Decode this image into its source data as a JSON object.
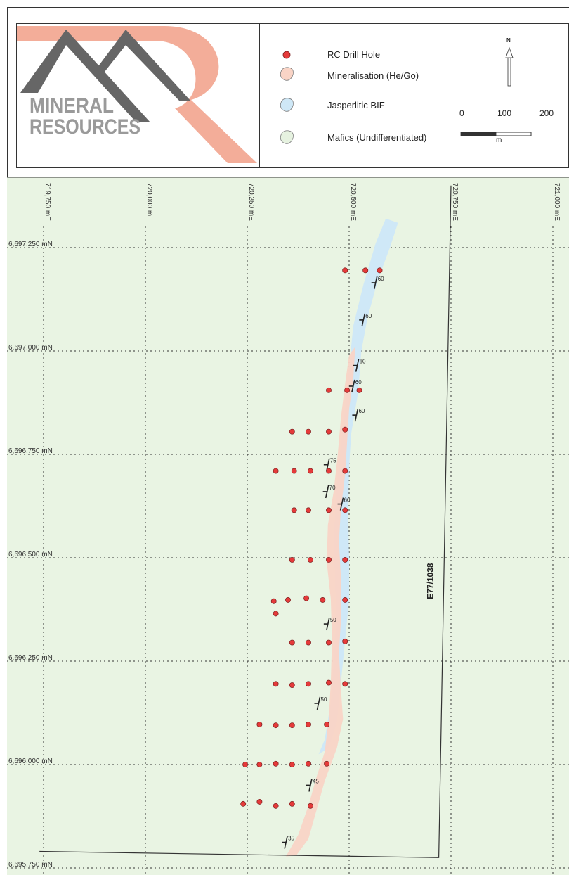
{
  "logo": {
    "line1": "MINERAL",
    "line2": "RESOURCES",
    "text_color": "#9a9a9a",
    "mountain_color": "#666666",
    "accent_color": "#f2a48e"
  },
  "legend": {
    "items": [
      {
        "label": "RC Drill Hole",
        "symbol": "drill-hole",
        "color": "#e53a3a"
      },
      {
        "label": "Mineralisation (He/Go)",
        "symbol": "polygon",
        "color": "#f9d4c6"
      },
      {
        "label": "Jasperlitic BIF",
        "symbol": "polygon",
        "color": "#cfe8f7"
      },
      {
        "label": "Mafics (Undifferentiated)",
        "symbol": "polygon",
        "color": "#e6f2e0"
      }
    ],
    "north_label": "N",
    "scale": {
      "ticks": [
        "0",
        "100",
        "200"
      ],
      "unit": "m"
    }
  },
  "map": {
    "background_color": "#e9f4e3",
    "eastings": [
      {
        "label": "719,750 mE",
        "value": 719750
      },
      {
        "label": "720,000 mE",
        "value": 720000
      },
      {
        "label": "720,250 mE",
        "value": 720250
      },
      {
        "label": "720,500 mE",
        "value": 720500
      },
      {
        "label": "720,750 mE",
        "value": 720750
      },
      {
        "label": "721,000 mE",
        "value": 721000
      }
    ],
    "northings": [
      {
        "label": "6,697,250 mN",
        "value": 6697250
      },
      {
        "label": "6,697,000 mN",
        "value": 6697000
      },
      {
        "label": "6,696,750 mN",
        "value": 6696750
      },
      {
        "label": "6,696,500 mN",
        "value": 6696500
      },
      {
        "label": "6,696,250 mN",
        "value": 6696250
      },
      {
        "label": "6,696,000 mN",
        "value": 6696000
      },
      {
        "label": "6,695,750 mN",
        "value": 6695750
      }
    ],
    "tenement_label": "E77/1038",
    "tenement_boundary": [
      [
        720750,
        6697400
      ],
      [
        720720,
        6695775
      ],
      [
        719740,
        6695790
      ]
    ],
    "bif_polygon": [
      [
        720620,
        6697310
      ],
      [
        720600,
        6697250
      ],
      [
        720570,
        6697170
      ],
      [
        720545,
        6697080
      ],
      [
        720530,
        6697000
      ],
      [
        720522,
        6696900
      ],
      [
        720505,
        6696800
      ],
      [
        720500,
        6696720
      ],
      [
        720498,
        6696600
      ],
      [
        720500,
        6696500
      ],
      [
        720500,
        6696400
      ],
      [
        720490,
        6696300
      ],
      [
        720480,
        6696200
      ],
      [
        720470,
        6696100
      ],
      [
        720450,
        6696040
      ],
      [
        720425,
        6696025
      ],
      [
        720440,
        6696060
      ],
      [
        720455,
        6696150
      ],
      [
        720462,
        6696250
      ],
      [
        720468,
        6696350
      ],
      [
        720465,
        6696450
      ],
      [
        720462,
        6696550
      ],
      [
        720468,
        6696650
      ],
      [
        720478,
        6696760
      ],
      [
        720490,
        6696860
      ],
      [
        720500,
        6696960
      ],
      [
        720510,
        6697060
      ],
      [
        720535,
        6697160
      ],
      [
        720565,
        6697260
      ],
      [
        720590,
        6697320
      ]
    ],
    "mineralisation_polygon": [
      [
        720515,
        6697010
      ],
      [
        720510,
        6696930
      ],
      [
        720500,
        6696860
      ],
      [
        720495,
        6696780
      ],
      [
        720490,
        6696700
      ],
      [
        720480,
        6696620
      ],
      [
        720475,
        6696540
      ],
      [
        720480,
        6696450
      ],
      [
        720480,
        6696350
      ],
      [
        720475,
        6696270
      ],
      [
        720480,
        6696180
      ],
      [
        720485,
        6696110
      ],
      [
        720470,
        6696040
      ],
      [
        720440,
        6695960
      ],
      [
        720420,
        6695890
      ],
      [
        720400,
        6695820
      ],
      [
        720370,
        6695780
      ],
      [
        720345,
        6695778
      ],
      [
        720375,
        6695830
      ],
      [
        720400,
        6695900
      ],
      [
        720420,
        6695970
      ],
      [
        720440,
        6696030
      ],
      [
        720450,
        6696110
      ],
      [
        720455,
        6696200
      ],
      [
        720458,
        6696300
      ],
      [
        720455,
        6696400
      ],
      [
        720445,
        6696490
      ],
      [
        720448,
        6696580
      ],
      [
        720462,
        6696660
      ],
      [
        720472,
        6696750
      ],
      [
        720480,
        6696840
      ],
      [
        720490,
        6696920
      ],
      [
        720500,
        6696990
      ]
    ],
    "drill_holes": [
      [
        720490,
        6697195
      ],
      [
        720540,
        6697195
      ],
      [
        720575,
        6697195
      ],
      [
        720450,
        6696905
      ],
      [
        720495,
        6696905
      ],
      [
        720525,
        6696905
      ],
      [
        720360,
        6696805
      ],
      [
        720400,
        6696805
      ],
      [
        720450,
        6696805
      ],
      [
        720490,
        6696810
      ],
      [
        720320,
        6696710
      ],
      [
        720365,
        6696710
      ],
      [
        720405,
        6696710
      ],
      [
        720450,
        6696710
      ],
      [
        720490,
        6696710
      ],
      [
        720365,
        6696615
      ],
      [
        720400,
        6696615
      ],
      [
        720450,
        6696615
      ],
      [
        720490,
        6696615
      ],
      [
        720360,
        6696495
      ],
      [
        720405,
        6696495
      ],
      [
        720450,
        6696495
      ],
      [
        720490,
        6696495
      ],
      [
        720315,
        6696395
      ],
      [
        720350,
        6696398
      ],
      [
        720395,
        6696402
      ],
      [
        720435,
        6696398
      ],
      [
        720490,
        6696398
      ],
      [
        720320,
        6696365
      ],
      [
        720360,
        6696295
      ],
      [
        720400,
        6696295
      ],
      [
        720450,
        6696295
      ],
      [
        720490,
        6696298
      ],
      [
        720320,
        6696195
      ],
      [
        720360,
        6696192
      ],
      [
        720400,
        6696195
      ],
      [
        720450,
        6696198
      ],
      [
        720490,
        6696195
      ],
      [
        720280,
        6696097
      ],
      [
        720320,
        6696095
      ],
      [
        720360,
        6696095
      ],
      [
        720400,
        6696097
      ],
      [
        720445,
        6696097
      ],
      [
        720245,
        6696000
      ],
      [
        720280,
        6696000
      ],
      [
        720320,
        6696002
      ],
      [
        720360,
        6696000
      ],
      [
        720400,
        6696002
      ],
      [
        720445,
        6696002
      ],
      [
        720240,
        6695905
      ],
      [
        720280,
        6695910
      ],
      [
        720320,
        6695900
      ],
      [
        720360,
        6695905
      ],
      [
        720405,
        6695900
      ]
    ],
    "dip_symbols": [
      {
        "e": 720565,
        "n": 6697165,
        "label": "60"
      },
      {
        "e": 720535,
        "n": 6697075,
        "label": "60"
      },
      {
        "e": 720520,
        "n": 6696965,
        "label": "60"
      },
      {
        "e": 720510,
        "n": 6696915,
        "label": "60"
      },
      {
        "e": 720518,
        "n": 6696845,
        "label": "60"
      },
      {
        "e": 720448,
        "n": 6696725,
        "label": "75"
      },
      {
        "e": 720446,
        "n": 6696660,
        "label": "70"
      },
      {
        "e": 720482,
        "n": 6696630,
        "label": "60"
      },
      {
        "e": 720448,
        "n": 6696340,
        "label": "50"
      },
      {
        "e": 720425,
        "n": 6696148,
        "label": "50"
      },
      {
        "e": 720405,
        "n": 6695950,
        "label": "45"
      },
      {
        "e": 720345,
        "n": 6695812,
        "label": "35"
      }
    ]
  }
}
